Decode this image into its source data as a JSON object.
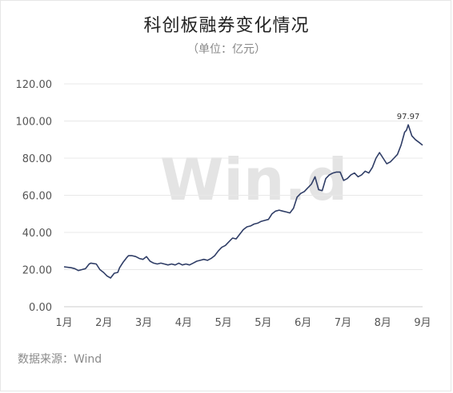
{
  "chart_data": {
    "type": "line",
    "title": "科创板融券变化情况",
    "subtitle": "（单位：亿元）",
    "source": "数据来源：Wind",
    "watermark": "Win.d",
    "y_ticks": [
      "120.00",
      "100.00",
      "80.00",
      "60.00",
      "40.00",
      "20.00",
      "0.00"
    ],
    "x_ticks": [
      "1月",
      "2月",
      "3月",
      "4月",
      "5月",
      "5月",
      "6月",
      "7月",
      "8月",
      "9月"
    ],
    "ylim": [
      0,
      120
    ],
    "xlim": [
      0,
      1
    ],
    "line_color": "#2f3d66",
    "grid": true,
    "peak_label": "97.97",
    "series": [
      {
        "x": [
          0.0,
          0.02,
          0.03,
          0.04,
          0.05,
          0.06,
          0.07,
          0.075,
          0.09,
          0.1,
          0.11,
          0.12,
          0.13,
          0.14,
          0.15,
          0.155,
          0.165,
          0.175,
          0.18,
          0.19,
          0.2,
          0.21,
          0.22,
          0.23,
          0.24,
          0.25,
          0.26,
          0.27,
          0.28,
          0.29,
          0.3,
          0.31,
          0.32,
          0.33,
          0.34,
          0.35,
          0.36,
          0.37,
          0.38,
          0.39,
          0.4,
          0.41,
          0.42,
          0.43,
          0.44,
          0.45,
          0.46,
          0.47,
          0.48,
          0.49,
          0.5,
          0.51,
          0.52,
          0.53,
          0.54,
          0.55,
          0.56,
          0.57,
          0.58,
          0.59,
          0.6,
          0.61,
          0.62,
          0.63,
          0.64,
          0.65,
          0.66,
          0.67,
          0.68,
          0.69,
          0.7,
          0.71,
          0.72,
          0.73,
          0.74,
          0.75,
          0.76,
          0.77,
          0.78,
          0.79,
          0.8,
          0.81,
          0.82,
          0.83,
          0.84,
          0.85,
          0.86,
          0.87,
          0.88,
          0.89,
          0.9,
          0.91,
          0.92,
          0.93,
          0.94,
          0.95,
          0.955,
          0.96,
          0.97,
          0.98,
          0.99,
          1.0
        ],
        "y": [
          21.5,
          21,
          20.5,
          19.5,
          20,
          20.5,
          23,
          23.5,
          23,
          20,
          18.5,
          16.5,
          15.5,
          18,
          18.5,
          21,
          24,
          26.5,
          27.5,
          27.5,
          27,
          26,
          25.5,
          27,
          24.5,
          23.5,
          23,
          23.5,
          23,
          22.5,
          23,
          22.5,
          23.5,
          22.5,
          23,
          22.5,
          23.5,
          24.5,
          25,
          25.5,
          25,
          26,
          27.5,
          30,
          32,
          33,
          35,
          37,
          36.5,
          39,
          41.5,
          43,
          43.5,
          44.5,
          45,
          46,
          46.5,
          47,
          50,
          51.5,
          52,
          51.5,
          51,
          50.5,
          53,
          59,
          61,
          62,
          64,
          66,
          70,
          63,
          62.5,
          69,
          71,
          72,
          72.5,
          72.5,
          68,
          69,
          71,
          72,
          70,
          71,
          73,
          72,
          75,
          80,
          83,
          80,
          77,
          78,
          80,
          82,
          87,
          94,
          95,
          97.97,
          92,
          90,
          88.5,
          87
        ]
      }
    ]
  }
}
